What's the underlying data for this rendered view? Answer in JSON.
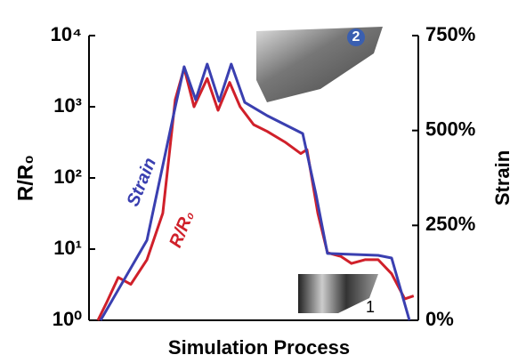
{
  "chart_data": {
    "type": "line",
    "xlabel": "Simulation Process",
    "ylabel": "R/R₀",
    "y2label": "Strain",
    "xlim": [
      0,
      100
    ],
    "ylim": [
      1,
      10000
    ],
    "ylog": true,
    "yticks": [
      {
        "value": 1,
        "label": "10⁰"
      },
      {
        "value": 10,
        "label": "10¹"
      },
      {
        "value": 100,
        "label": "10²"
      },
      {
        "value": 1000,
        "label": "10³"
      },
      {
        "value": 10000,
        "label": "10⁴"
      }
    ],
    "y2lim": [
      0,
      750
    ],
    "y2ticks": [
      {
        "value": 0,
        "label": "0%"
      },
      {
        "value": 250,
        "label": "250%"
      },
      {
        "value": 500,
        "label": "500%"
      },
      {
        "value": 750,
        "label": "750%"
      }
    ],
    "series": [
      {
        "name": "R/R₀",
        "color": "#d0202a",
        "x": [
          2.7,
          5.4,
          8.9,
          12.7,
          17.6,
          22.4,
          26.2,
          28.9,
          31.9,
          35.9,
          39.2,
          42.7,
          45.9,
          50,
          54.1,
          59.5,
          64.3,
          66.2,
          69.5,
          72.4,
          76.5,
          79.7,
          83.8,
          87.8,
          91.9,
          95.9,
          98.6
        ],
        "values": [
          1,
          1.8,
          4,
          3.2,
          7.1,
          32,
          1260,
          3500,
          1000,
          2500,
          890,
          2200,
          1000,
          560,
          450,
          320,
          220,
          250,
          32,
          8.9,
          7.9,
          6.3,
          7.1,
          7.1,
          4.5,
          2,
          2.2
        ]
      },
      {
        "name": "Strain",
        "color": "#3a3fb0",
        "axis": "y2",
        "x": [
          3.5,
          17.6,
          26.2,
          28.9,
          32.4,
          35.9,
          39.5,
          43.2,
          47.3,
          54.1,
          64.9,
          68.9,
          72.4,
          87.8,
          91.9,
          97.3
        ],
        "values": [
          0,
          211,
          562,
          668,
          581,
          675,
          577,
          675,
          574,
          539,
          492,
          333,
          176,
          171,
          164,
          0
        ]
      }
    ],
    "insets": [
      {
        "label": "2"
      },
      {
        "label": "1"
      }
    ]
  }
}
